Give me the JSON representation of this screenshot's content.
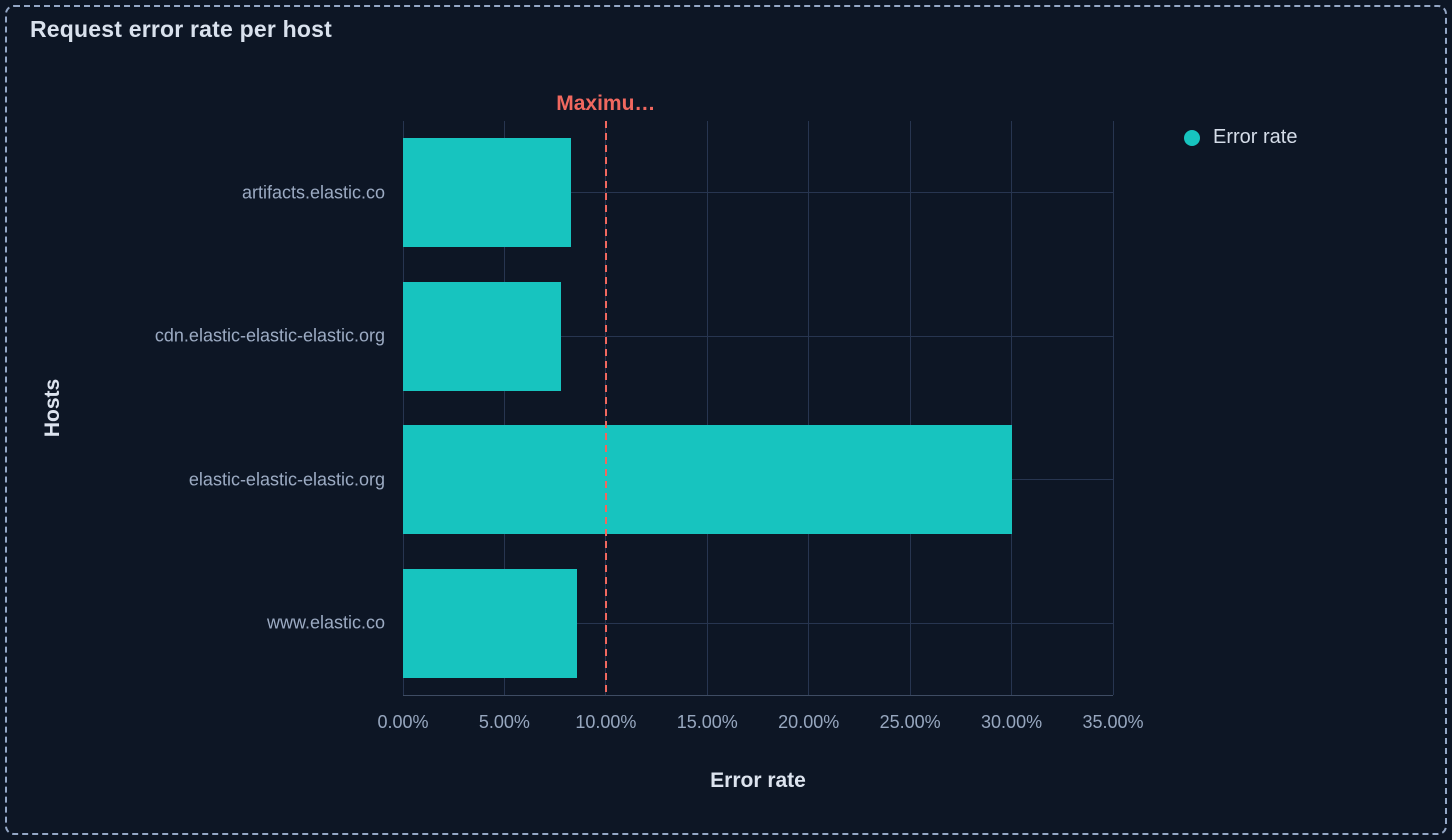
{
  "panel": {
    "title": "Request error rate per host"
  },
  "legend": {
    "items": [
      {
        "label": "Error rate",
        "color": "#17c4bf"
      }
    ]
  },
  "chart_data": {
    "type": "bar",
    "orientation": "horizontal",
    "title": "Request error rate per host",
    "categories": [
      "artifacts.elastic.co",
      "cdn.elastic-elastic-elastic.org",
      "elastic-elastic-elastic.org",
      "www.elastic.co"
    ],
    "series": [
      {
        "name": "Error rate",
        "values": [
          8.3,
          7.8,
          30.0,
          8.6
        ],
        "unit": "%"
      }
    ],
    "xlabel": "Error rate",
    "ylabel": "Hosts",
    "xlim": [
      0,
      35
    ],
    "x_ticks": [
      {
        "label": "0.00%",
        "value": 0
      },
      {
        "label": "5.00%",
        "value": 5
      },
      {
        "label": "10.00%",
        "value": 10
      },
      {
        "label": "15.00%",
        "value": 15
      },
      {
        "label": "20.00%",
        "value": 20
      },
      {
        "label": "25.00%",
        "value": 25
      },
      {
        "label": "30.00%",
        "value": 30
      },
      {
        "label": "35.00%",
        "value": 35
      }
    ],
    "threshold": {
      "label": "Maximu…",
      "value": 10,
      "color": "#f0685f"
    },
    "grid": true,
    "legend_position": "right",
    "bar_color": "#17c4bf",
    "colors": {
      "background": "#0d1625",
      "panel_border": "#94a7c6",
      "gridline": "#273550",
      "axis_line": "#3e4c63",
      "title_text": "#d9e1ed",
      "tick_text": "#97a7bf"
    }
  }
}
